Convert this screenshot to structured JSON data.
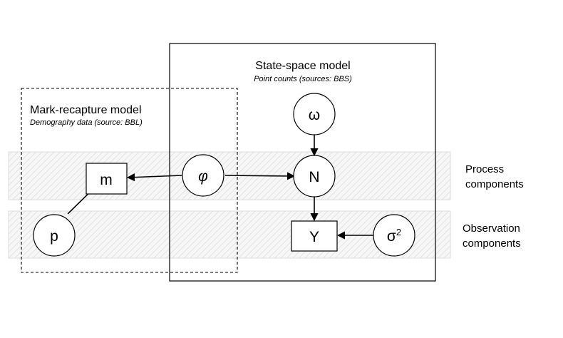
{
  "state_space": {
    "title": "State-space model",
    "subtitle": "Point counts (sources: BBS)"
  },
  "mark_recapture": {
    "title": "Mark-recapture model",
    "subtitle": "Demography data (source: BBL)"
  },
  "bands": {
    "process": {
      "line1": "Process",
      "line2": "components"
    },
    "observation": {
      "line1": "Observation",
      "line2": "components"
    }
  },
  "nodes": {
    "m": "m",
    "phi": "φ",
    "N": "N",
    "omega": "ω",
    "p": "p",
    "Y": "Y",
    "sigma": "σ",
    "sigma_exp": "2"
  }
}
